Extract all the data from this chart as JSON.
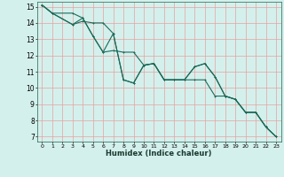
{
  "xlabel": "Humidex (Indice chaleur)",
  "xlim": [
    -0.5,
    23.5
  ],
  "ylim": [
    6.7,
    15.3
  ],
  "xticks": [
    0,
    1,
    2,
    3,
    4,
    5,
    6,
    7,
    8,
    9,
    10,
    11,
    12,
    13,
    14,
    15,
    16,
    17,
    18,
    19,
    20,
    21,
    22,
    23
  ],
  "yticks": [
    7,
    8,
    9,
    10,
    11,
    12,
    13,
    14,
    15
  ],
  "bg_color": "#d4f0ec",
  "grid_color": "#e8a0a0",
  "line_color": "#1a6b5a",
  "line1": [
    [
      0,
      15.1
    ],
    [
      1,
      14.6
    ],
    [
      3,
      13.9
    ],
    [
      4,
      14.1
    ],
    [
      5,
      14.0
    ],
    [
      6,
      14.0
    ],
    [
      7,
      13.35
    ],
    [
      8,
      10.5
    ],
    [
      9,
      10.3
    ],
    [
      10,
      11.4
    ],
    [
      11,
      11.5
    ],
    [
      12,
      10.5
    ],
    [
      13,
      10.5
    ],
    [
      14,
      10.5
    ],
    [
      15,
      11.3
    ],
    [
      16,
      11.5
    ],
    [
      17,
      10.7
    ],
    [
      18,
      9.5
    ],
    [
      19,
      9.3
    ],
    [
      20,
      8.5
    ],
    [
      21,
      8.5
    ],
    [
      22,
      7.6
    ],
    [
      23,
      7.0
    ]
  ],
  "line2": [
    [
      0,
      15.1
    ],
    [
      1,
      14.6
    ],
    [
      3,
      14.6
    ],
    [
      4,
      14.3
    ],
    [
      5,
      13.2
    ],
    [
      6,
      12.2
    ],
    [
      7,
      12.3
    ],
    [
      8,
      12.2
    ],
    [
      9,
      12.2
    ],
    [
      10,
      11.4
    ],
    [
      11,
      11.5
    ],
    [
      12,
      10.5
    ],
    [
      13,
      10.5
    ],
    [
      14,
      10.5
    ],
    [
      15,
      10.5
    ],
    [
      16,
      10.5
    ],
    [
      17,
      9.5
    ],
    [
      18,
      9.5
    ],
    [
      19,
      9.3
    ],
    [
      20,
      8.5
    ],
    [
      21,
      8.5
    ],
    [
      22,
      7.6
    ],
    [
      23,
      7.0
    ]
  ],
  "line3": [
    [
      0,
      15.1
    ],
    [
      1,
      14.6
    ],
    [
      3,
      13.9
    ],
    [
      4,
      14.3
    ],
    [
      5,
      13.2
    ],
    [
      6,
      12.2
    ],
    [
      7,
      13.35
    ],
    [
      8,
      10.5
    ],
    [
      9,
      10.3
    ],
    [
      10,
      11.4
    ],
    [
      11,
      11.5
    ],
    [
      12,
      10.5
    ],
    [
      13,
      10.5
    ],
    [
      14,
      10.5
    ],
    [
      15,
      11.3
    ],
    [
      16,
      11.5
    ],
    [
      17,
      10.7
    ],
    [
      18,
      9.5
    ],
    [
      19,
      9.3
    ],
    [
      20,
      8.5
    ],
    [
      21,
      8.5
    ],
    [
      22,
      7.6
    ],
    [
      23,
      7.0
    ]
  ]
}
